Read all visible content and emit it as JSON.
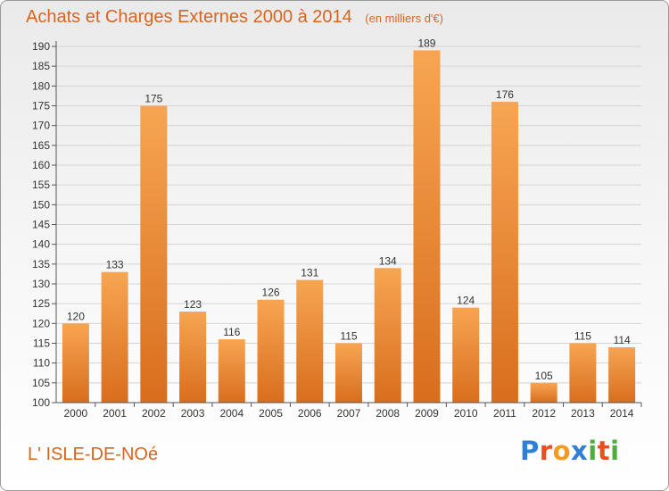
{
  "header": {
    "title": "Achats et Charges Externes 2000 à 2014",
    "unit": "(en milliers d'€)"
  },
  "footer": {
    "commune": "L' ISLE-DE-NOé",
    "logo_letters": [
      "P",
      "r",
      "o",
      "x",
      "i",
      "t",
      "i"
    ],
    "logo_colors": [
      "#2f7fd6",
      "#e8501e",
      "#f29c1f",
      "#2f7fd6",
      "#4caf3c",
      "#e8501e",
      "#4caf3c"
    ]
  },
  "colors": {
    "text_accent": "#d9651c",
    "bar_light": "#f7a552",
    "bar_dark": "#d86e1d"
  },
  "chart_data": {
    "type": "bar",
    "title": "Achats et Charges Externes 2000 à 2014",
    "subtitle": "(en milliers d'€)",
    "xlabel": "",
    "ylabel": "",
    "categories": [
      "2000",
      "2001",
      "2002",
      "2003",
      "2004",
      "2005",
      "2006",
      "2007",
      "2008",
      "2009",
      "2010",
      "2011",
      "2012",
      "2013",
      "2014"
    ],
    "values": [
      120,
      133,
      175,
      123,
      116,
      126,
      131,
      115,
      134,
      189,
      124,
      176,
      105,
      115,
      114
    ],
    "ylim": [
      100,
      190
    ],
    "yticks": [
      100,
      105,
      110,
      115,
      120,
      125,
      130,
      135,
      140,
      145,
      150,
      155,
      160,
      165,
      170,
      175,
      180,
      185,
      190
    ],
    "grid": true
  }
}
